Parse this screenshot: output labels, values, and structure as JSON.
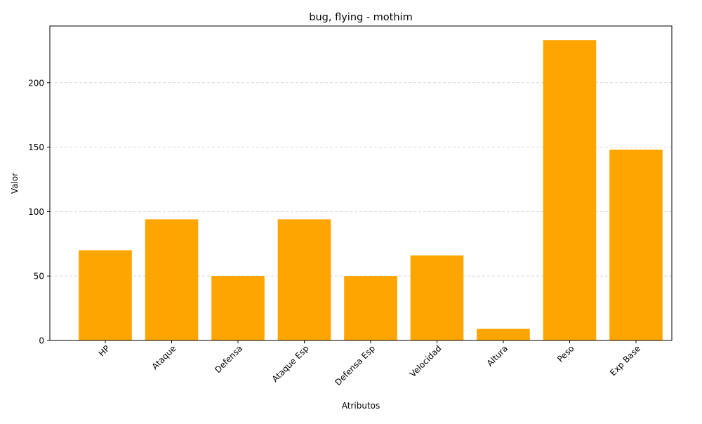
{
  "chart_data": {
    "type": "bar",
    "title": "bug, flying - mothim",
    "xlabel": "Atributos",
    "ylabel": "Valor",
    "categories": [
      "HP",
      "Ataque",
      "Defensa",
      "Ataque Esp",
      "Defensa Esp",
      "Velocidad",
      "Altura",
      "Peso",
      "Exp Base"
    ],
    "values": [
      70,
      94,
      50,
      94,
      50,
      66,
      9,
      233,
      148
    ],
    "ylim": [
      0,
      244
    ],
    "yticks": [
      0,
      50,
      100,
      150,
      200
    ],
    "grid": "y-dashed",
    "bar_color": "#ffa500",
    "tick_label_rotation_deg": 45
  }
}
